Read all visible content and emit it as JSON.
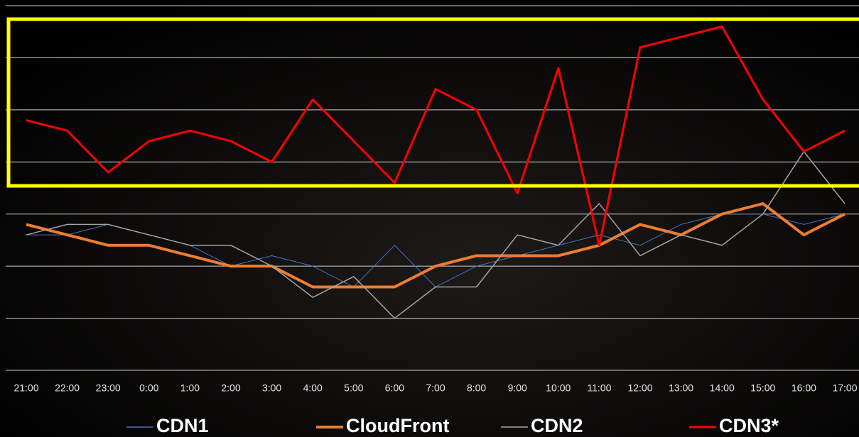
{
  "chart_data": {
    "type": "line",
    "categories": [
      "21:00",
      "22:00",
      "23:00",
      "0:00",
      "1:00",
      "2:00",
      "3:00",
      "4:00",
      "5:00",
      "6:00",
      "7:00",
      "8:00",
      "9:00",
      "10:00",
      "11:00",
      "12:00",
      "13:00",
      "14:00",
      "15:00",
      "16:00",
      "17:00"
    ],
    "series": [
      {
        "name": "CDN1",
        "color": "#4472c4",
        "values": [
          2.6,
          2.6,
          2.8,
          2.6,
          2.4,
          2.0,
          2.2,
          2.0,
          1.6,
          2.4,
          1.6,
          2.0,
          2.2,
          2.4,
          2.6,
          2.4,
          2.8,
          3.0,
          3.0,
          2.8,
          3.0
        ]
      },
      {
        "name": "CloudFront",
        "color": "#ed7d31",
        "values": [
          2.8,
          2.6,
          2.4,
          2.4,
          2.2,
          2.0,
          2.0,
          1.6,
          1.6,
          1.6,
          2.0,
          2.2,
          2.2,
          2.2,
          2.4,
          2.8,
          2.6,
          3.0,
          3.2,
          2.6,
          3.0
        ]
      },
      {
        "name": "CDN2",
        "color": "#a5a5a5",
        "values": [
          2.6,
          2.8,
          2.8,
          2.6,
          2.4,
          2.4,
          2.0,
          1.4,
          1.8,
          1.0,
          1.6,
          1.6,
          2.6,
          2.4,
          3.2,
          2.2,
          2.6,
          2.4,
          3.0,
          4.2,
          3.2
        ]
      },
      {
        "name": "CDN3*",
        "color": "#ff0000",
        "values": [
          4.8,
          4.6,
          3.8,
          4.4,
          4.6,
          4.4,
          4.0,
          5.2,
          4.4,
          3.6,
          5.4,
          5.0,
          3.4,
          5.8,
          2.4,
          6.2,
          6.4,
          6.6,
          5.2,
          4.2,
          4.6
        ]
      }
    ],
    "ylim": [
      0,
      7
    ],
    "yticks": [
      0,
      1,
      2,
      3,
      4,
      5,
      6,
      7
    ],
    "grid": true
  }
}
